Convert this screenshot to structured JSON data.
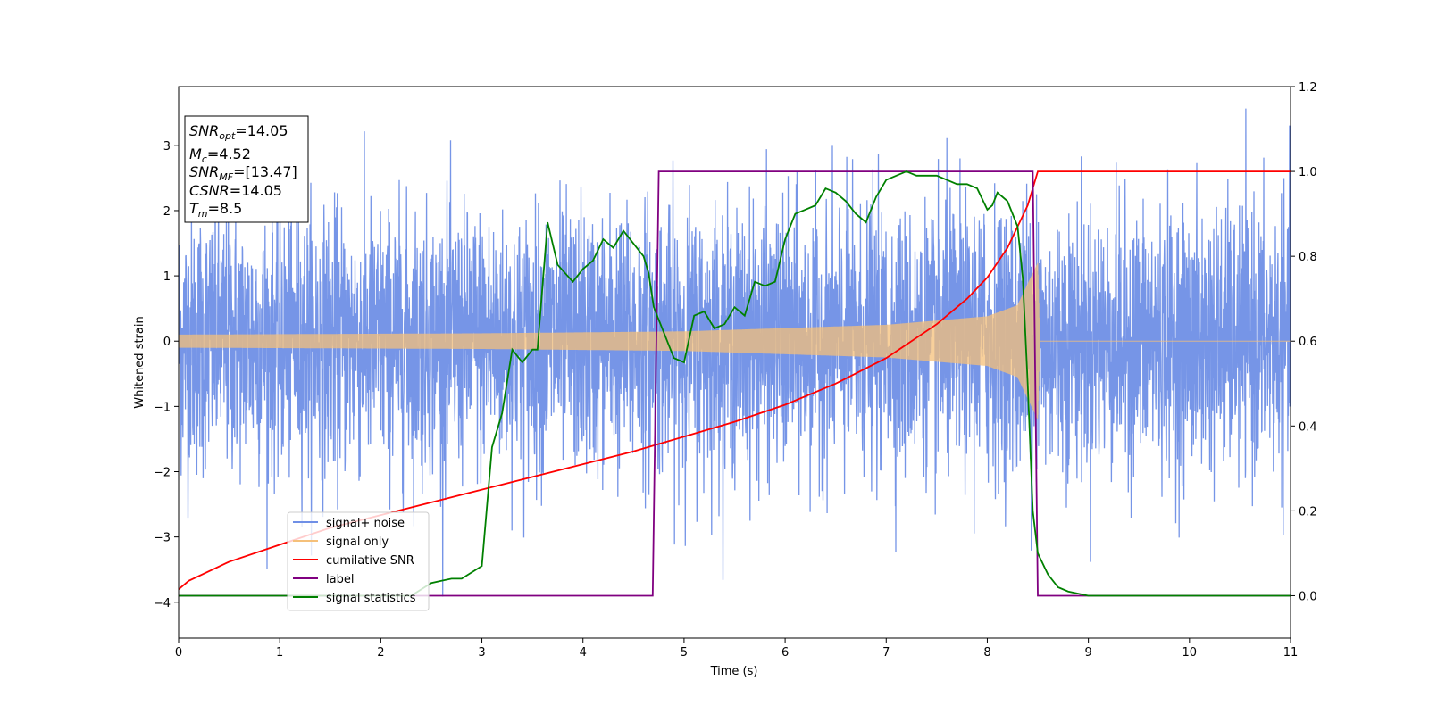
{
  "chart_data": {
    "type": "line",
    "title": "",
    "xlabel": "Time (s)",
    "ylabel": "Whitened strain",
    "xlim": [
      0,
      11
    ],
    "ylim_left": [
      -4.55,
      3.9
    ],
    "ylim_right": [
      -0.1,
      1.2
    ],
    "x_ticks": [
      "0",
      "1",
      "2",
      "3",
      "4",
      "5",
      "6",
      "7",
      "8",
      "9",
      "10",
      "11"
    ],
    "y_ticks_left": [
      "−4",
      "−3",
      "−2",
      "−1",
      "0",
      "1",
      "2",
      "3"
    ],
    "y_ticks_right": [
      "0.0",
      "0.2",
      "0.4",
      "0.6",
      "0.8",
      "1.0",
      "1.2"
    ],
    "grid": false,
    "legend_position": "lower-left",
    "info_box": {
      "lines": [
        {
          "symbol": "SNR",
          "sub": "opt",
          "text": "=14.05"
        },
        {
          "symbol": "M",
          "sub": "c",
          "text": "=4.52"
        },
        {
          "symbol": "SNR",
          "sub": "MF",
          "text": "=[13.47]"
        },
        {
          "symbol": "CSNR",
          "sub": "",
          "text": "=14.05"
        },
        {
          "symbol": "T",
          "sub": "m",
          "text": "=8.5"
        }
      ]
    },
    "series": [
      {
        "name": "signal+ noise",
        "axis": "left",
        "color": "#6f8fe6",
        "description_values": {
          "noise_sigma": 1.0,
          "t_start": 0,
          "t_end": 11
        }
      },
      {
        "name": "signal only",
        "axis": "left",
        "color": "#f5c07a",
        "values_envelope": [
          [
            0,
            0.1
          ],
          [
            3,
            0.12
          ],
          [
            5,
            0.15
          ],
          [
            7,
            0.25
          ],
          [
            8,
            0.38
          ],
          [
            8.3,
            0.55
          ],
          [
            8.5,
            1.2
          ],
          [
            8.52,
            0
          ],
          [
            11,
            0
          ]
        ]
      },
      {
        "name": "cumilative SNR",
        "axis": "right",
        "color": "#ff0000",
        "x": [
          0,
          0.1,
          0.5,
          1,
          1.5,
          2,
          2.5,
          3,
          3.5,
          4,
          4.5,
          5,
          5.5,
          6,
          6.5,
          7,
          7.5,
          7.8,
          8,
          8.2,
          8.4,
          8.5,
          8.52,
          11
        ],
        "values": [
          0.015,
          0.035,
          0.08,
          0.12,
          0.16,
          0.19,
          0.22,
          0.25,
          0.28,
          0.31,
          0.34,
          0.375,
          0.41,
          0.45,
          0.5,
          0.56,
          0.64,
          0.7,
          0.75,
          0.82,
          0.92,
          1.0,
          1.0,
          1.0
        ]
      },
      {
        "name": "label",
        "axis": "right",
        "color": "#800080",
        "x": [
          0,
          4.69,
          4.75,
          8.45,
          8.5,
          11
        ],
        "values": [
          0,
          0,
          1,
          1,
          0,
          0
        ]
      },
      {
        "name": "signal statistics",
        "axis": "right",
        "color": "#008000",
        "x": [
          0,
          2.3,
          2.5,
          2.6,
          2.7,
          2.8,
          3.0,
          3.1,
          3.2,
          3.3,
          3.4,
          3.5,
          3.55,
          3.65,
          3.75,
          3.9,
          4.0,
          4.1,
          4.2,
          4.3,
          4.4,
          4.5,
          4.6,
          4.65,
          4.7,
          4.8,
          4.9,
          5.0,
          5.1,
          5.2,
          5.3,
          5.4,
          5.5,
          5.6,
          5.7,
          5.8,
          5.9,
          6.0,
          6.1,
          6.2,
          6.3,
          6.4,
          6.5,
          6.6,
          6.7,
          6.8,
          6.9,
          7.0,
          7.1,
          7.2,
          7.3,
          7.4,
          7.5,
          7.6,
          7.7,
          7.8,
          7.9,
          8.0,
          8.05,
          8.1,
          8.2,
          8.3,
          8.35,
          8.4,
          8.45,
          8.5,
          8.6,
          8.7,
          8.8,
          9.0,
          11
        ],
        "values": [
          0,
          0,
          0.03,
          0.035,
          0.04,
          0.04,
          0.07,
          0.35,
          0.43,
          0.58,
          0.55,
          0.58,
          0.58,
          0.88,
          0.78,
          0.74,
          0.77,
          0.79,
          0.84,
          0.82,
          0.86,
          0.83,
          0.8,
          0.76,
          0.68,
          0.62,
          0.56,
          0.55,
          0.66,
          0.67,
          0.63,
          0.64,
          0.68,
          0.66,
          0.74,
          0.73,
          0.74,
          0.84,
          0.9,
          0.91,
          0.92,
          0.96,
          0.95,
          0.93,
          0.9,
          0.88,
          0.94,
          0.98,
          0.99,
          1.0,
          0.99,
          0.99,
          0.99,
          0.98,
          0.97,
          0.97,
          0.96,
          0.91,
          0.92,
          0.95,
          0.93,
          0.87,
          0.75,
          0.5,
          0.2,
          0.1,
          0.05,
          0.02,
          0.01,
          0.0,
          0.0
        ]
      }
    ]
  }
}
